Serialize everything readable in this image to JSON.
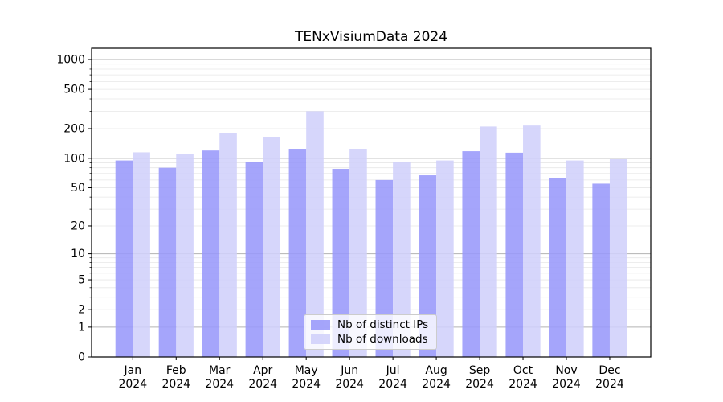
{
  "chart_data": {
    "type": "bar",
    "title": "TENxVisiumData 2024",
    "categories": [
      "Jan",
      "Feb",
      "Mar",
      "Apr",
      "May",
      "Jun",
      "Jul",
      "Aug",
      "Sep",
      "Oct",
      "Nov",
      "Dec"
    ],
    "category_year": "2024",
    "series": [
      {
        "name": "Nb of distinct IPs",
        "color": "#9898fa",
        "values": [
          95,
          80,
          120,
          92,
          125,
          78,
          60,
          67,
          118,
          114,
          63,
          55
        ]
      },
      {
        "name": "Nb of downloads",
        "color": "#d0d0fa",
        "values": [
          115,
          110,
          180,
          165,
          300,
          125,
          92,
          95,
          210,
          215,
          95,
          98
        ]
      }
    ],
    "yscale": "log1p",
    "ylim": [
      0,
      1300
    ],
    "yticks": [
      0,
      1,
      2,
      5,
      10,
      20,
      50,
      100,
      200,
      500,
      1000
    ],
    "major_gridlines": [
      1,
      10,
      100,
      1000
    ],
    "minor_gridlines": [
      2,
      3,
      4,
      5,
      6,
      7,
      8,
      9,
      20,
      30,
      40,
      50,
      60,
      70,
      80,
      90,
      200,
      300,
      400,
      500,
      600,
      700,
      800,
      900
    ],
    "grid": true,
    "legend_position": "lower center",
    "colors": {
      "major_grid": "#b3b3b3",
      "minor_grid": "#e7e7e7",
      "axis": "#000000",
      "text": "#000000"
    }
  }
}
